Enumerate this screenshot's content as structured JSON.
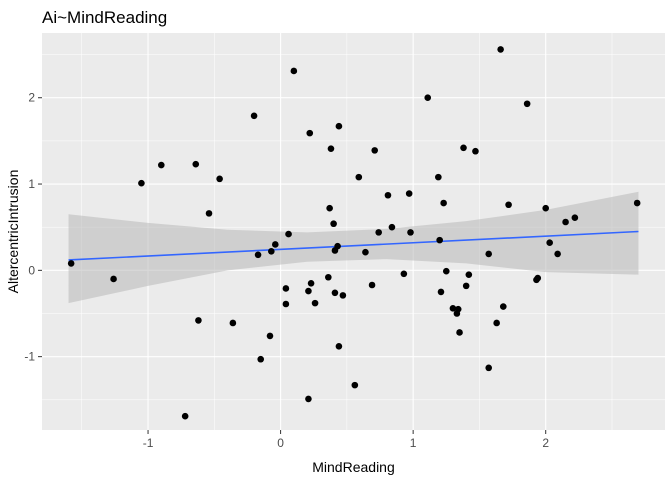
{
  "chart_data": {
    "type": "scatter",
    "title": "Ai~MindReading",
    "xlabel": "MindReading",
    "ylabel": "AltercentricIntrusion",
    "xlim": [
      -1.8,
      2.9
    ],
    "ylim": [
      -1.85,
      2.75
    ],
    "x_ticks": [
      -1,
      0,
      1,
      2
    ],
    "x_tick_labels": [
      "-1",
      "0",
      "1",
      "2"
    ],
    "y_ticks": [
      -1,
      0,
      1,
      2
    ],
    "y_tick_labels": [
      "-1",
      "0",
      "1",
      "2"
    ],
    "grid": true,
    "legend": "none",
    "points": [
      {
        "x": -1.58,
        "y": 0.08
      },
      {
        "x": -1.26,
        "y": -0.1
      },
      {
        "x": -1.05,
        "y": 1.01
      },
      {
        "x": -0.9,
        "y": 1.22
      },
      {
        "x": -0.72,
        "y": -1.69
      },
      {
        "x": -0.64,
        "y": 1.23
      },
      {
        "x": -0.62,
        "y": -0.58
      },
      {
        "x": -0.54,
        "y": 0.66
      },
      {
        "x": -0.46,
        "y": 1.06
      },
      {
        "x": -0.36,
        "y": -0.61
      },
      {
        "x": -0.2,
        "y": 1.79
      },
      {
        "x": -0.17,
        "y": 0.18
      },
      {
        "x": -0.15,
        "y": -1.03
      },
      {
        "x": -0.08,
        "y": -0.76
      },
      {
        "x": -0.07,
        "y": 0.22
      },
      {
        "x": -0.04,
        "y": 0.3
      },
      {
        "x": 0.04,
        "y": -0.21
      },
      {
        "x": 0.04,
        "y": -0.39
      },
      {
        "x": 0.06,
        "y": 0.42
      },
      {
        "x": 0.1,
        "y": 2.31
      },
      {
        "x": 0.21,
        "y": -1.49
      },
      {
        "x": 0.21,
        "y": -0.24
      },
      {
        "x": 0.22,
        "y": 1.59
      },
      {
        "x": 0.23,
        "y": -0.15
      },
      {
        "x": 0.26,
        "y": -0.38
      },
      {
        "x": 0.36,
        "y": -0.08
      },
      {
        "x": 0.37,
        "y": 0.72
      },
      {
        "x": 0.38,
        "y": 1.41
      },
      {
        "x": 0.4,
        "y": 0.54
      },
      {
        "x": 0.41,
        "y": -0.26
      },
      {
        "x": 0.41,
        "y": 0.23
      },
      {
        "x": 0.43,
        "y": 0.28
      },
      {
        "x": 0.44,
        "y": 1.67
      },
      {
        "x": 0.44,
        "y": -0.88
      },
      {
        "x": 0.47,
        "y": -0.29
      },
      {
        "x": 0.56,
        "y": -1.33
      },
      {
        "x": 0.59,
        "y": 1.08
      },
      {
        "x": 0.64,
        "y": 0.21
      },
      {
        "x": 0.69,
        "y": -0.17
      },
      {
        "x": 0.71,
        "y": 1.39
      },
      {
        "x": 0.74,
        "y": 0.44
      },
      {
        "x": 0.81,
        "y": 0.87
      },
      {
        "x": 0.84,
        "y": 0.5
      },
      {
        "x": 0.93,
        "y": -0.04
      },
      {
        "x": 0.97,
        "y": 0.89
      },
      {
        "x": 0.98,
        "y": 0.44
      },
      {
        "x": 1.11,
        "y": 2.0
      },
      {
        "x": 1.19,
        "y": 1.08
      },
      {
        "x": 1.2,
        "y": 0.35
      },
      {
        "x": 1.21,
        "y": -0.25
      },
      {
        "x": 1.23,
        "y": 0.78
      },
      {
        "x": 1.25,
        "y": -0.01
      },
      {
        "x": 1.3,
        "y": -0.44
      },
      {
        "x": 1.33,
        "y": -0.5
      },
      {
        "x": 1.34,
        "y": -0.45
      },
      {
        "x": 1.35,
        "y": -0.72
      },
      {
        "x": 1.38,
        "y": 1.42
      },
      {
        "x": 1.4,
        "y": -0.18
      },
      {
        "x": 1.42,
        "y": -0.05
      },
      {
        "x": 1.47,
        "y": 1.38
      },
      {
        "x": 1.57,
        "y": -1.13
      },
      {
        "x": 1.57,
        "y": 0.19
      },
      {
        "x": 1.63,
        "y": -0.61
      },
      {
        "x": 1.66,
        "y": 2.56
      },
      {
        "x": 1.68,
        "y": -0.42
      },
      {
        "x": 1.72,
        "y": 0.76
      },
      {
        "x": 1.86,
        "y": 1.93
      },
      {
        "x": 1.93,
        "y": -0.11
      },
      {
        "x": 1.94,
        "y": -0.09
      },
      {
        "x": 2.0,
        "y": 0.72
      },
      {
        "x": 2.03,
        "y": 0.32
      },
      {
        "x": 2.09,
        "y": 0.19
      },
      {
        "x": 2.15,
        "y": 0.56
      },
      {
        "x": 2.22,
        "y": 0.61
      },
      {
        "x": 2.69,
        "y": 0.78
      }
    ],
    "fit_line": {
      "x": [
        -1.6,
        2.7
      ],
      "y": [
        0.12,
        0.45
      ]
    },
    "confidence_band": {
      "x": [
        -1.6,
        -1.0,
        -0.4,
        0.2,
        0.8,
        1.4,
        2.0,
        2.7
      ],
      "lower": [
        -0.38,
        -0.18,
        0.0,
        0.1,
        0.13,
        0.08,
        -0.02,
        -0.05
      ],
      "upper": [
        0.65,
        0.55,
        0.47,
        0.44,
        0.48,
        0.57,
        0.7,
        0.91
      ]
    },
    "colors": {
      "panel": "#ebebeb",
      "grid_major": "#ffffff",
      "point": "#000000",
      "fit_line": "#3366ff",
      "band": "#b8b8b8"
    }
  }
}
